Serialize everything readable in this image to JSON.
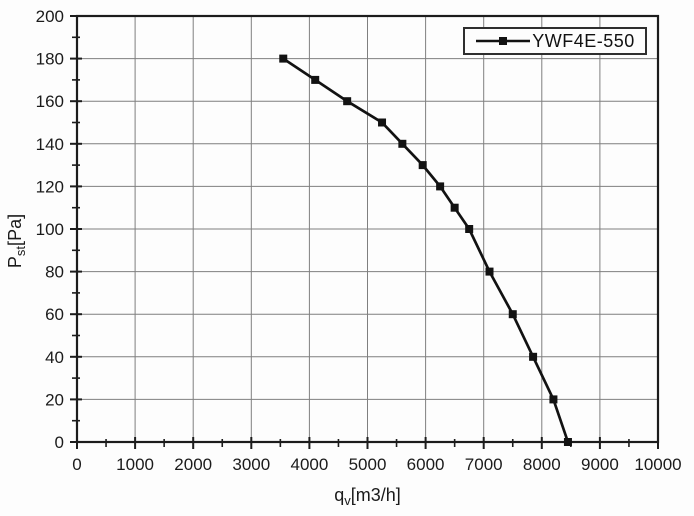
{
  "chart_data": {
    "type": "line",
    "title": "",
    "xlabel_parts": [
      {
        "text": "q",
        "sub": false
      },
      {
        "text": "v",
        "sub": true
      },
      {
        "text": "[m3/h]",
        "sub": false
      }
    ],
    "ylabel_parts": [
      {
        "text": "P",
        "sub": false
      },
      {
        "text": "st",
        "sub": true
      },
      {
        "text": "[Pa]",
        "sub": false
      }
    ],
    "xlim": [
      0,
      10000
    ],
    "ylim": [
      0,
      200
    ],
    "xticks": [
      0,
      1000,
      2000,
      3000,
      4000,
      5000,
      6000,
      7000,
      8000,
      9000,
      10000
    ],
    "yticks": [
      0,
      20,
      40,
      60,
      80,
      100,
      120,
      140,
      160,
      180,
      200
    ],
    "x_minor_step": 500,
    "y_minor_step": 10,
    "grid": true,
    "legend_position": "top-right",
    "series": [
      {
        "name": "YWF4E-550",
        "marker": "square",
        "x": [
          3550,
          4100,
          4650,
          5250,
          5600,
          5950,
          6250,
          6500,
          6750,
          7100,
          7500,
          7850,
          8200,
          8450
        ],
        "y": [
          180,
          170,
          160,
          150,
          140,
          130,
          120,
          110,
          100,
          80,
          60,
          40,
          20,
          0
        ]
      }
    ]
  },
  "colors": {
    "background": "#fdfdfd",
    "axis": "#1c1c1c",
    "grid": "#7f7f7f",
    "series": "#121212",
    "text": "#1b1b1b"
  }
}
